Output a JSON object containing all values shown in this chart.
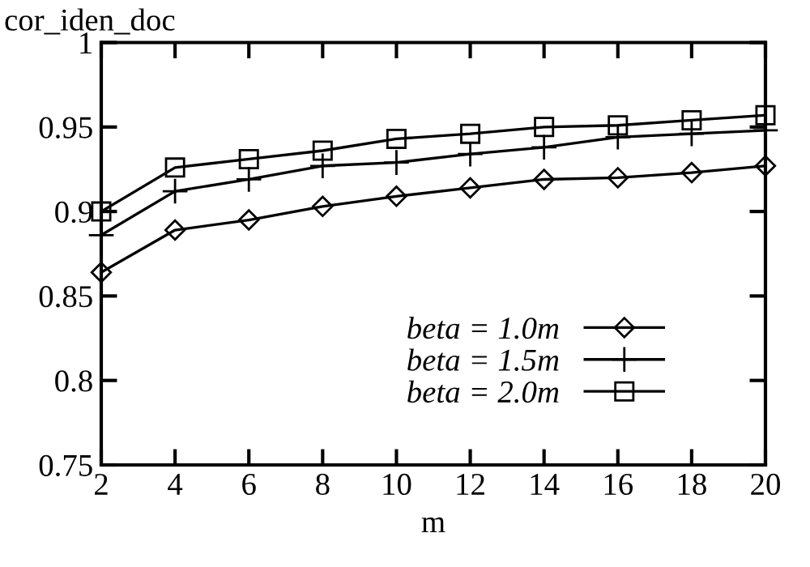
{
  "chart_data": {
    "type": "line",
    "ylabel": "cor_iden_doc",
    "xlabel": "m",
    "x": [
      2,
      4,
      6,
      8,
      10,
      12,
      14,
      16,
      18,
      20
    ],
    "series": [
      {
        "name": "beta = 1.0m",
        "color": "#000000",
        "marker": "diamond",
        "values": [
          0.864,
          0.889,
          0.895,
          0.903,
          0.909,
          0.914,
          0.919,
          0.92,
          0.923,
          0.927
        ]
      },
      {
        "name": "beta = 1.5m",
        "color": "#000000",
        "marker": "cross",
        "values": [
          0.886,
          0.912,
          0.919,
          0.927,
          0.929,
          0.934,
          0.938,
          0.944,
          0.946,
          0.948
        ]
      },
      {
        "name": "beta = 2.0m",
        "color": "#000000",
        "marker": "square",
        "values": [
          0.9,
          0.926,
          0.931,
          0.936,
          0.943,
          0.946,
          0.95,
          0.951,
          0.954,
          0.957
        ]
      }
    ],
    "xlim": [
      2,
      20
    ],
    "xticks": [
      2,
      4,
      6,
      8,
      10,
      12,
      14,
      16,
      18,
      20
    ],
    "ylim": [
      0.75,
      1
    ],
    "yticks": [
      0.75,
      0.8,
      0.85,
      0.9,
      0.95,
      1
    ],
    "grid": false,
    "legend": "bottom right",
    "line_style": "solid"
  }
}
